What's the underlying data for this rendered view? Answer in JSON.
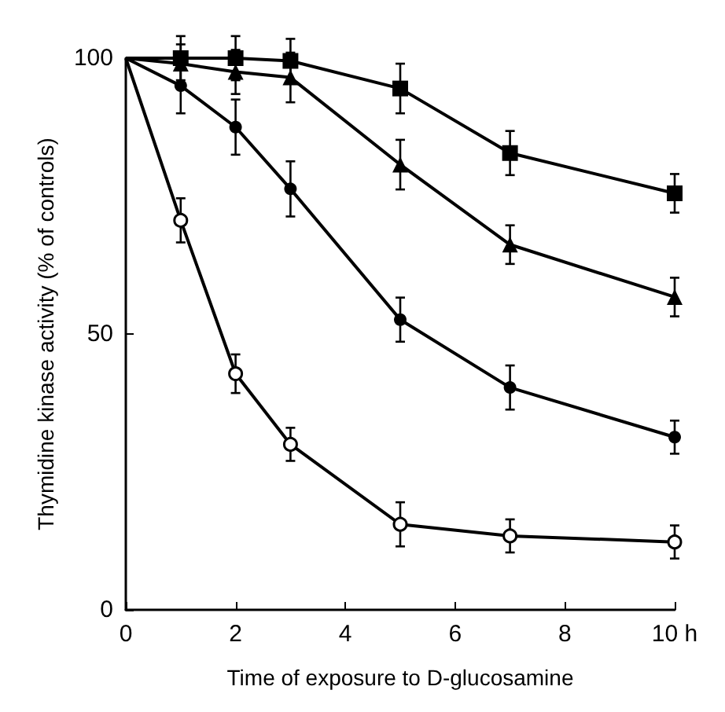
{
  "chart_data": {
    "type": "line",
    "xlabel": "Time of exposure to D-glucosamine",
    "ylabel": "Thymidine kinase activity (% of controls)",
    "x": [
      0,
      1,
      2,
      3,
      5,
      7,
      10
    ],
    "xlim": [
      0,
      10
    ],
    "xticks": [
      0,
      2,
      4,
      6,
      8,
      {
        "value": 10,
        "label": "10 h"
      }
    ],
    "ylim": [
      0,
      100
    ],
    "yticks": [
      0,
      50,
      100
    ],
    "grid": false,
    "line_style": "solid",
    "series": [
      {
        "color": "#000000",
        "marker": "square",
        "values": [
          100,
          100,
          100,
          99.5,
          94.5,
          82.8,
          75.5
        ],
        "errors": [
          null,
          4,
          4,
          4,
          4.5,
          4,
          3.5
        ]
      },
      {
        "color": "#000000",
        "marker": "triangle",
        "values": [
          100,
          99,
          97.5,
          96.5,
          80.7,
          66.2,
          56.7
        ],
        "errors": [
          null,
          3.5,
          4,
          4.5,
          4.5,
          3.5,
          3.5
        ]
      },
      {
        "color": "#000000",
        "marker": "circle",
        "values": [
          100,
          95,
          87.5,
          76.3,
          52.6,
          40.3,
          31.3
        ],
        "errors": [
          null,
          5,
          5,
          5,
          4,
          4,
          3
        ]
      },
      {
        "color": "#000000",
        "marker": "circle",
        "colors": [
          "#ffffff",
          "#ffffff",
          "#ffffff",
          "#ffffff",
          "#ffffff",
          "#ffffff",
          "#ffffff"
        ],
        "values": [
          100,
          70.6,
          42.8,
          30,
          15.5,
          13.4,
          12.3
        ],
        "errors": [
          null,
          4,
          3.5,
          3,
          4,
          3,
          3
        ]
      }
    ]
  }
}
